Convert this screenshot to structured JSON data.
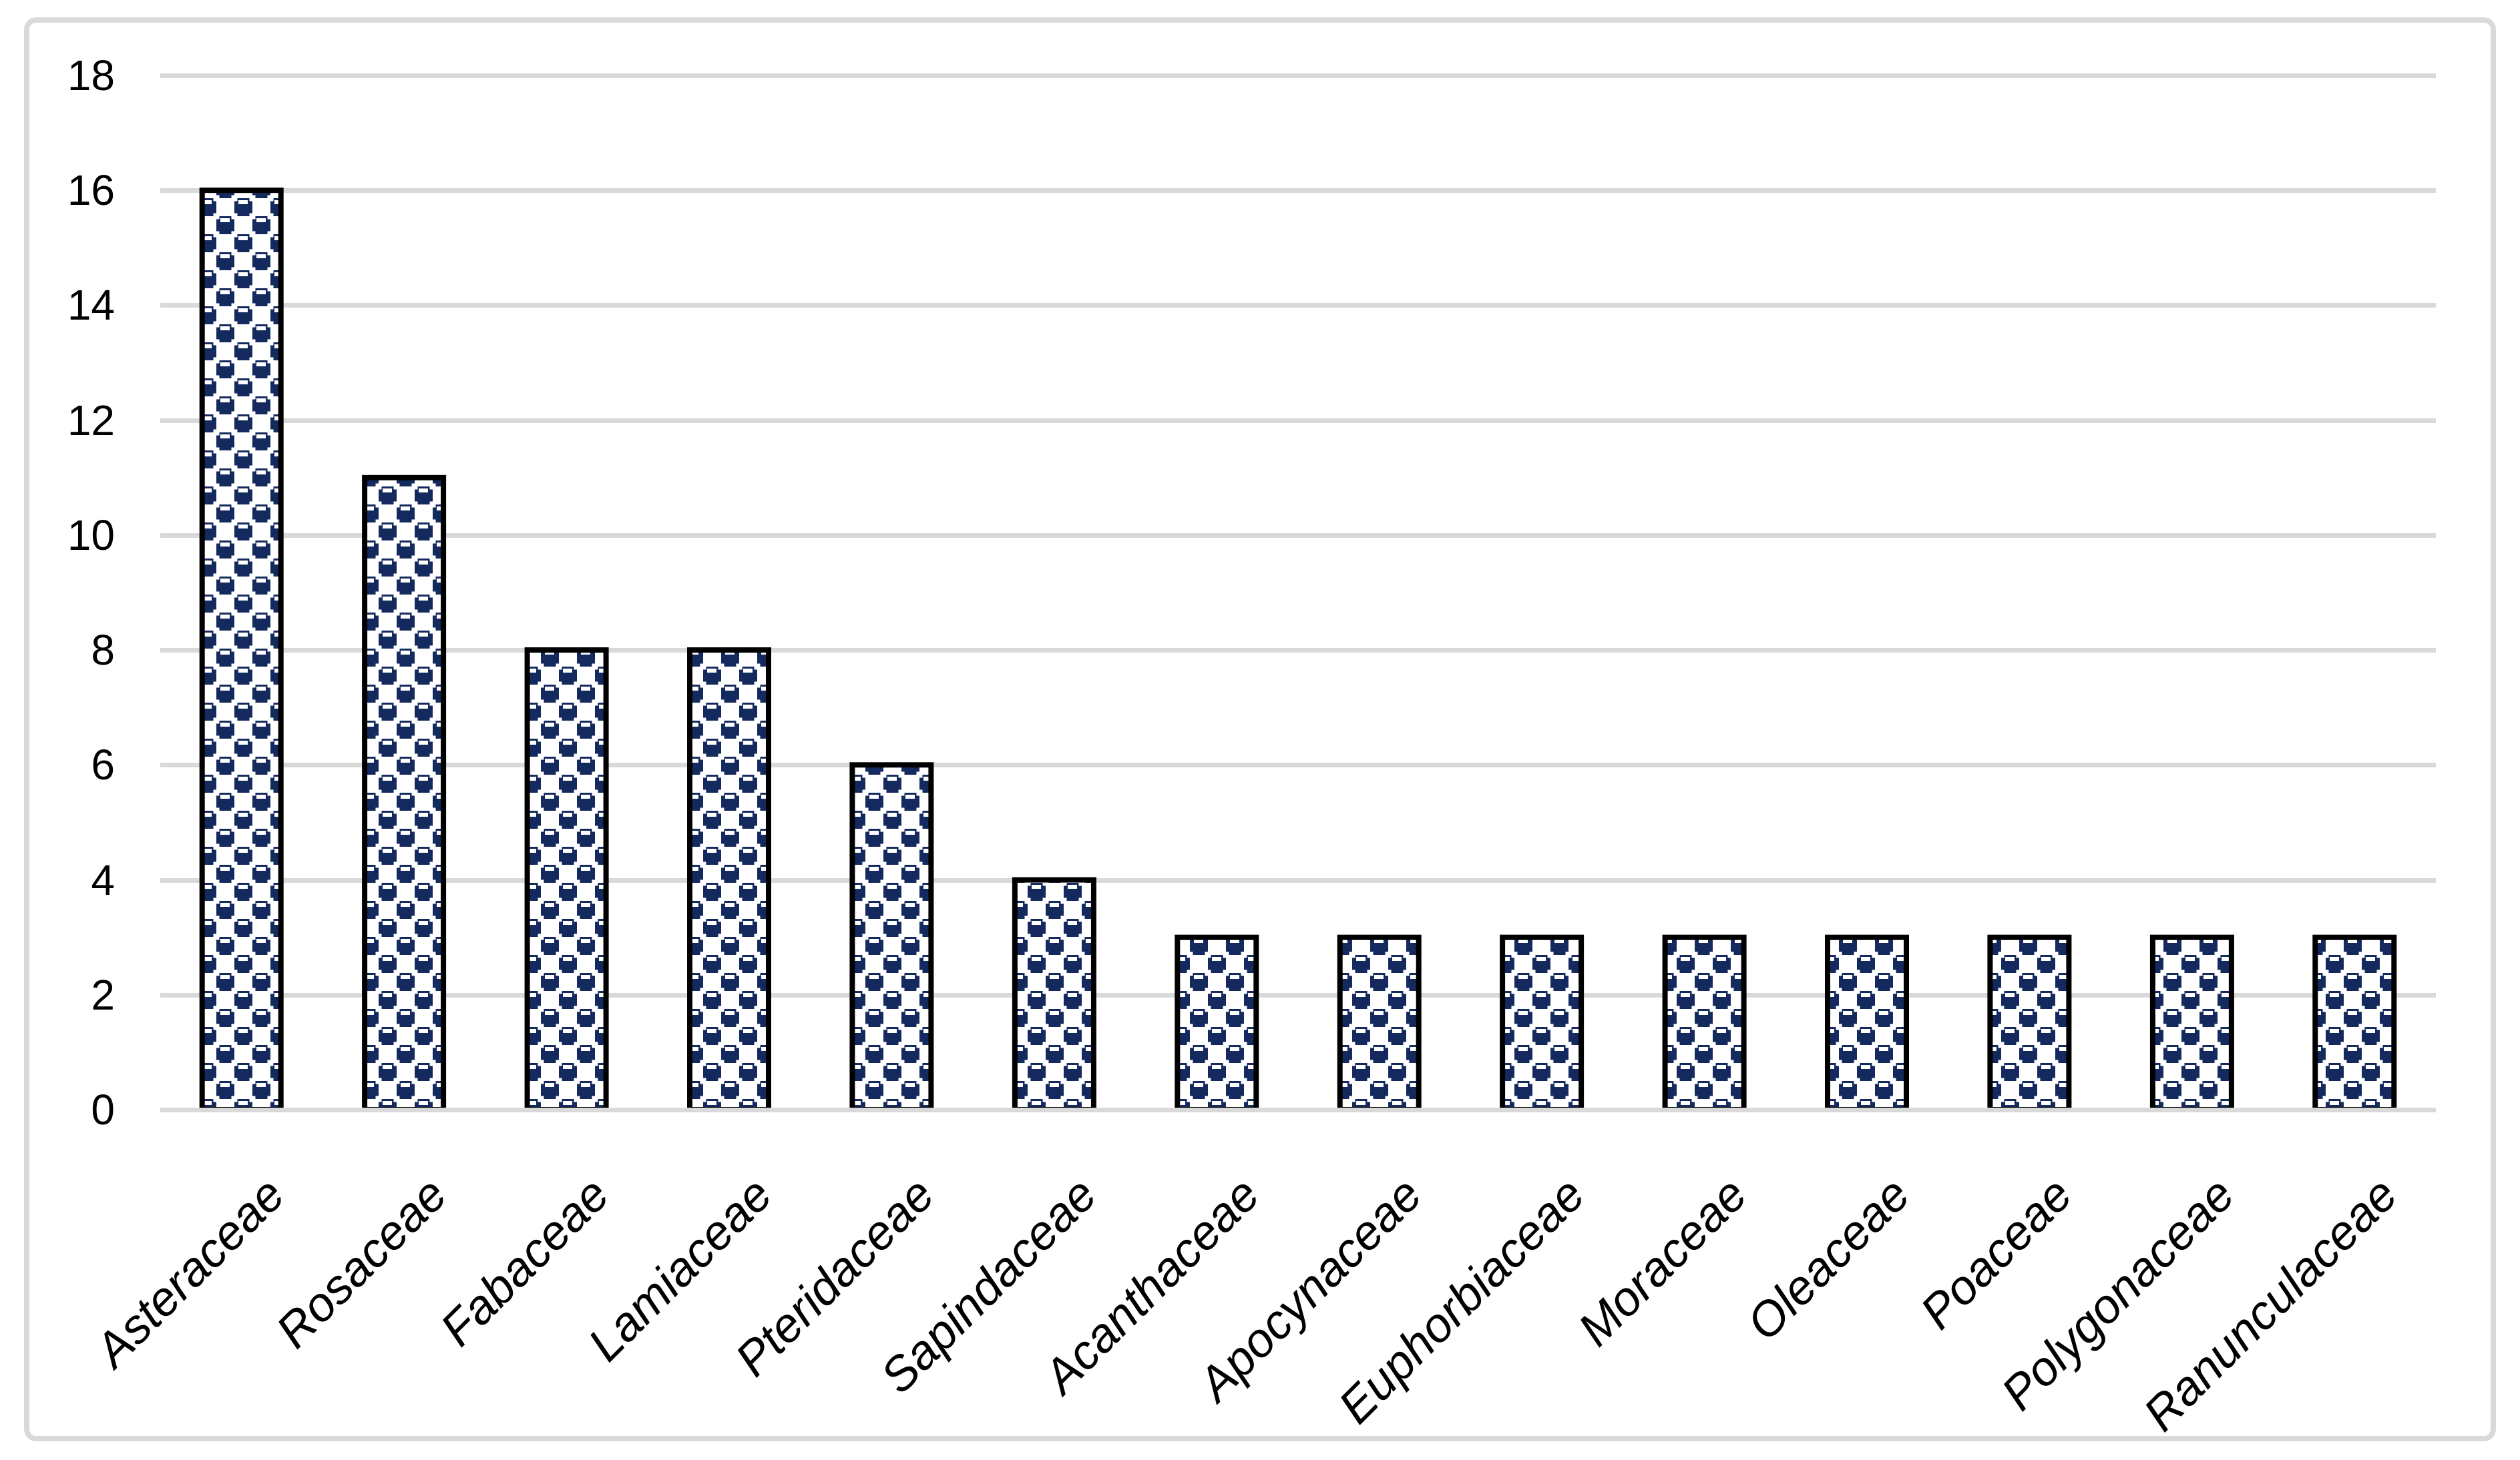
{
  "chart_data": {
    "type": "bar",
    "title": "",
    "xlabel": "",
    "ylabel": "",
    "categories": [
      "Asteraceae",
      "Rosaceae",
      "Fabaceae",
      "Lamiaceae",
      "Pteridaceae",
      "Sapindaceae",
      "Acanthaceae",
      "Apocynaceae",
      "Euphorbiaceae",
      "Moraceae",
      "Oleaceae",
      "Poaceae",
      "Polygonaceae",
      "Ranunculaceae"
    ],
    "values": [
      16,
      11,
      8,
      8,
      6,
      4,
      3,
      3,
      3,
      3,
      3,
      3,
      3,
      3
    ],
    "yticks": [
      0,
      2,
      4,
      6,
      8,
      10,
      12,
      14,
      16,
      18
    ],
    "ylim": [
      0,
      18
    ],
    "grid": true,
    "legend": "none",
    "bar_pattern": "sphere-checker",
    "x_label_rotation_deg": 45,
    "x_label_style": "italic",
    "colors": {
      "bar_fill": "#14295E",
      "bar_pattern_bg": "#FFFFFF",
      "bar_border": "#000000",
      "gridline": "#D9D9D9",
      "axis_line": "#D9D9D9",
      "frame_border": "#D9D9D9",
      "tick_label": "#000000",
      "background": "#FFFFFF"
    }
  }
}
